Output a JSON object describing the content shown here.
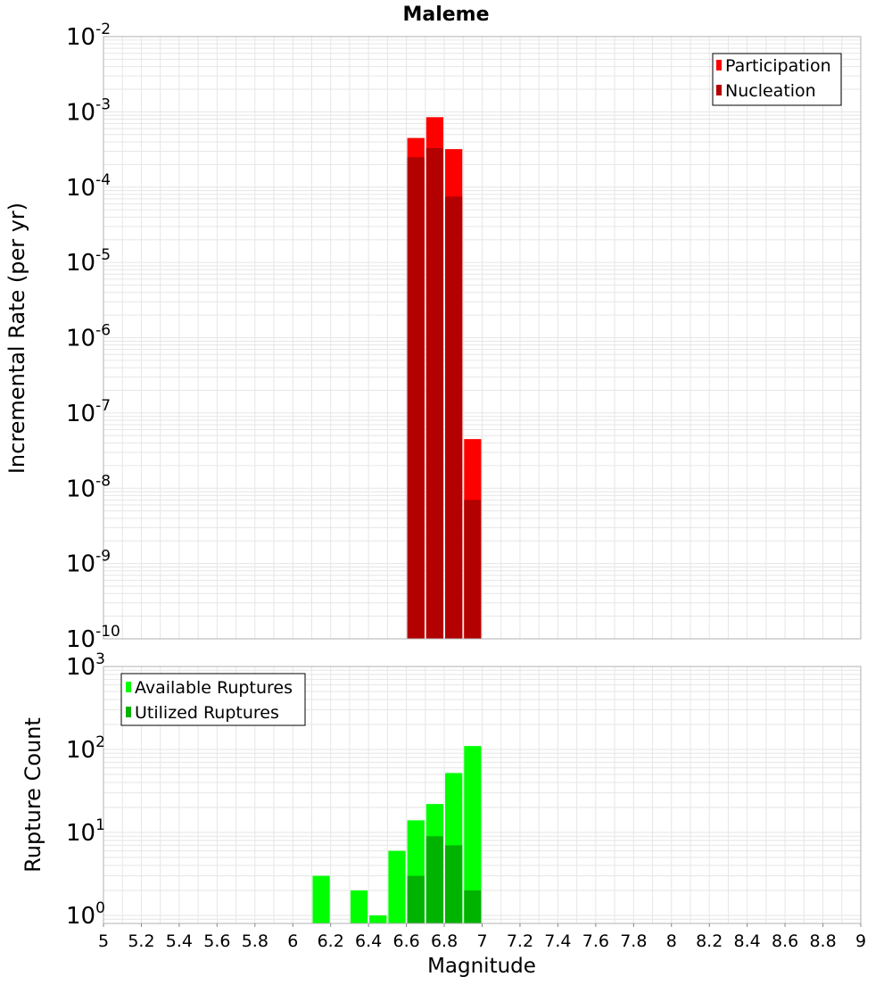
{
  "title": "Maleme",
  "colors": {
    "participation": "#ff0000",
    "nucleation": "#b30000",
    "available": "#00ff00",
    "utilized": "#00b300",
    "grid": "#e6e6e6",
    "frame": "#b0b0b0"
  },
  "chart_data": [
    {
      "type": "bar",
      "title": "Maleme",
      "xlabel": "",
      "ylabel": "Incremental Rate (per yr)",
      "yscale": "log",
      "ylim": [
        1e-10,
        0.01
      ],
      "xlim": [
        5,
        9
      ],
      "grid": true,
      "legend_position": "top-right",
      "bin_width": 0.1,
      "x": [
        6.65,
        6.75,
        6.85,
        6.95
      ],
      "series": [
        {
          "name": "Participation",
          "color": "#ff0000",
          "values": [
            0.00045,
            0.00085,
            0.00032,
            4.5e-08
          ]
        },
        {
          "name": "Nucleation",
          "color": "#b30000",
          "values": [
            0.00025,
            0.00033,
            7.5e-05,
            7e-09
          ]
        }
      ]
    },
    {
      "type": "bar",
      "xlabel": "Magnitude",
      "ylabel": "Rupture Count",
      "yscale": "log",
      "ylim": [
        0.8,
        1000
      ],
      "xlim": [
        5,
        9
      ],
      "grid": true,
      "legend_position": "top-left",
      "bin_width": 0.1,
      "x": [
        6.15,
        6.35,
        6.45,
        6.55,
        6.65,
        6.75,
        6.85,
        6.95
      ],
      "series": [
        {
          "name": "Available Ruptures",
          "color": "#00ff00",
          "values": [
            3,
            2,
            1,
            6,
            14,
            22,
            52,
            110
          ]
        },
        {
          "name": "Utilized Ruptures",
          "color": "#00b300",
          "values": [
            null,
            null,
            null,
            null,
            3,
            9,
            7,
            2
          ]
        }
      ],
      "x_ticks": [
        "5",
        "5.2",
        "5.4",
        "5.6",
        "5.8",
        "6",
        "6.2",
        "6.4",
        "6.6",
        "6.8",
        "7",
        "7.2",
        "7.4",
        "7.6",
        "7.8",
        "8",
        "8.2",
        "8.4",
        "8.6",
        "8.8",
        "9"
      ]
    }
  ]
}
